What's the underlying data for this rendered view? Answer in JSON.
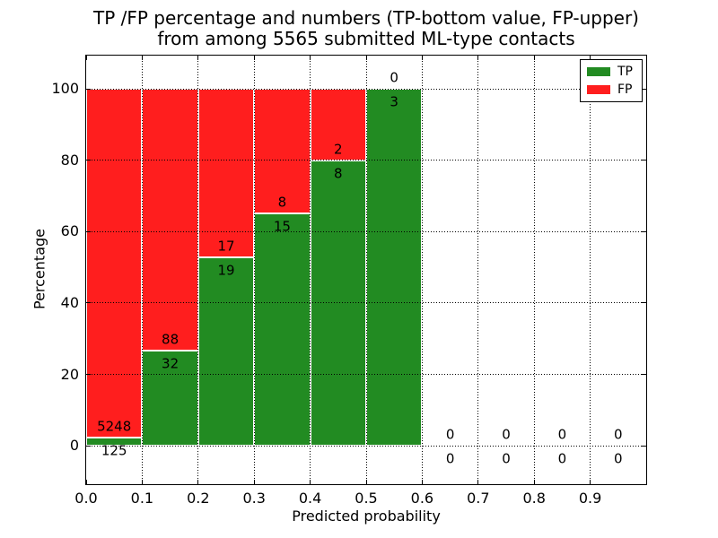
{
  "figure": {
    "title_line1": "TP /FP percentage and numbers (TP-bottom value, FP-upper)",
    "title_line2": "from among 5565 submitted ML-type contacts"
  },
  "chart_data": {
    "type": "bar",
    "subtype": "stacked-100-percent-histogram",
    "title": "TP /FP percentage and numbers (TP-bottom value, FP-upper)\nfrom among 5565 submitted ML-type contacts",
    "xlabel": "Predicted probability",
    "ylabel": "Percentage",
    "total_submitted_contacts": 5565,
    "xlim": [
      0.0,
      1.0
    ],
    "ylim": [
      -10.8,
      109.4
    ],
    "bin_width": 0.1,
    "bin_starts": [
      0.0,
      0.1,
      0.2,
      0.3,
      0.4,
      0.5,
      0.6,
      0.7,
      0.8,
      0.9
    ],
    "x_tick_labels": [
      "0.0",
      "0.1",
      "0.2",
      "0.3",
      "0.4",
      "0.5",
      "0.6",
      "0.7",
      "0.8",
      "0.9"
    ],
    "y_tick_values": [
      0,
      20,
      40,
      60,
      80,
      100
    ],
    "y_tick_labels": [
      "0",
      "20",
      "40",
      "60",
      "80",
      "100"
    ],
    "grid": true,
    "grid_style": "dotted",
    "legend_position": "upper right",
    "series": [
      {
        "name": "TP",
        "color": "#228B22",
        "values": [
          125,
          32,
          19,
          15,
          8,
          3,
          0,
          0,
          0,
          0
        ]
      },
      {
        "name": "FP",
        "color": "#FF1E1E",
        "values": [
          5248,
          88,
          17,
          8,
          2,
          0,
          0,
          0,
          0,
          0
        ]
      }
    ],
    "tp_percent_by_bin": [
      2.33,
      26.67,
      52.78,
      65.22,
      80.0,
      100.0,
      0,
      0,
      0,
      0
    ]
  },
  "legend": {
    "entries": [
      {
        "label": "TP",
        "color": "#228B22"
      },
      {
        "label": "FP",
        "color": "#FF1E1E"
      }
    ]
  },
  "colors": {
    "tp": "#228B22",
    "fp": "#FF1E1E",
    "background": "#ffffff",
    "axis": "#000000",
    "text": "#000000",
    "grid": "#000000",
    "bar_edge": "#ffffff"
  }
}
